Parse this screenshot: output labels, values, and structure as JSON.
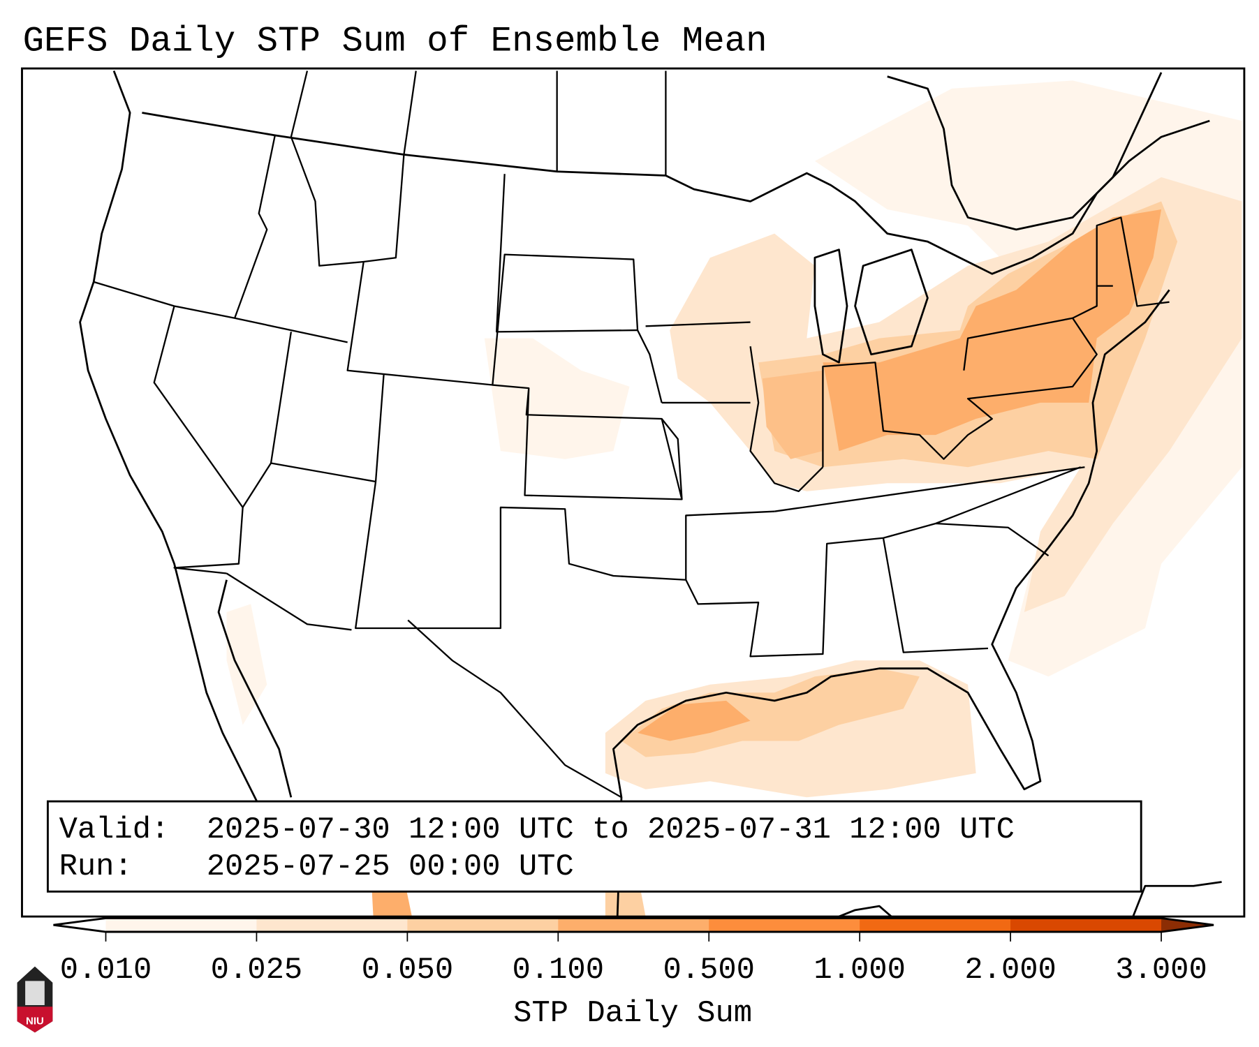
{
  "title": "GEFS Daily STP Sum of Ensemble Mean",
  "info_box": {
    "valid_label": "Valid:",
    "valid_value": "2025-07-30 12:00 UTC to 2025-07-31 12:00 UTC",
    "run_label": "Run:",
    "run_value": "2025-07-25 00:00 UTC"
  },
  "colorbar": {
    "label": "STP Daily Sum",
    "ticks": [
      "0.010",
      "0.025",
      "0.050",
      "0.100",
      "0.500",
      "1.000",
      "2.000",
      "3.000"
    ],
    "colors": [
      "#fff5eb",
      "#fee6ce",
      "#fdd0a2",
      "#fdae6b",
      "#fd8d3c",
      "#f16913",
      "#d94801"
    ],
    "under_color": "#ffffff",
    "over_color": "#8c2d04"
  },
  "logo": {
    "text": "NIU"
  }
}
